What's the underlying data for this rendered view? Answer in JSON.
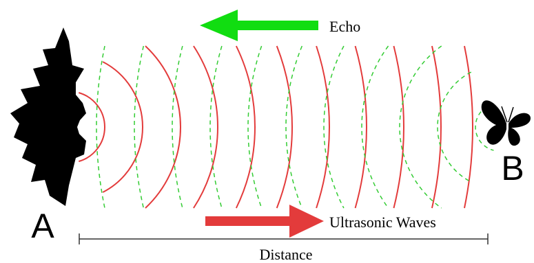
{
  "labels": {
    "echo": "Echo",
    "ultrasonic": "Ultrasonic Waves",
    "distance": "Distance",
    "point_a": "A",
    "point_b": "B"
  }
}
